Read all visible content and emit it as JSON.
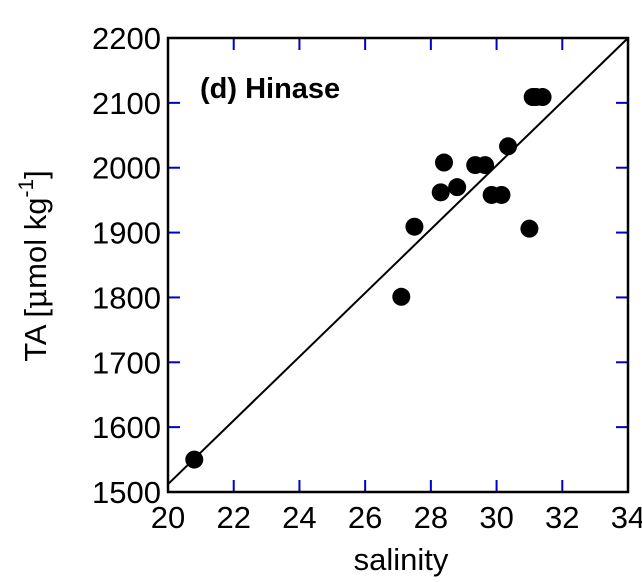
{
  "chart_data": {
    "type": "scatter",
    "title": "(d) Hinase",
    "xlabel": "salinity",
    "ylabel_main": "TA [",
    "ylabel_mu": "μ",
    "ylabel_unit": "mol kg",
    "ylabel_sup": "-1",
    "ylabel_close": "]",
    "xlim": [
      20,
      34
    ],
    "ylim": [
      1500,
      2200
    ],
    "xticks": [
      "20",
      "22",
      "24",
      "26",
      "28",
      "30",
      "32",
      "34"
    ],
    "yticks": [
      "1500",
      "1600",
      "1700",
      "1800",
      "1900",
      "2000",
      "2100",
      "2200"
    ],
    "grid": false,
    "points": [
      {
        "x": 20.8,
        "y": 1550
      },
      {
        "x": 27.1,
        "y": 1801
      },
      {
        "x": 27.5,
        "y": 1909
      },
      {
        "x": 28.3,
        "y": 1962
      },
      {
        "x": 28.4,
        "y": 2008
      },
      {
        "x": 28.8,
        "y": 1970
      },
      {
        "x": 29.35,
        "y": 2004
      },
      {
        "x": 29.65,
        "y": 2004
      },
      {
        "x": 29.85,
        "y": 1958
      },
      {
        "x": 30.15,
        "y": 1958
      },
      {
        "x": 30.35,
        "y": 2033
      },
      {
        "x": 31.0,
        "y": 1906
      },
      {
        "x": 31.1,
        "y": 2109
      },
      {
        "x": 31.2,
        "y": 2109
      },
      {
        "x": 31.4,
        "y": 2109
      }
    ],
    "fit_line": {
      "x": [
        20,
        34
      ],
      "y": [
        1512,
        2200
      ]
    },
    "colors": {
      "points": "#000000",
      "line": "#000000",
      "axes": "#000000",
      "ticks": "#0000cc"
    }
  }
}
